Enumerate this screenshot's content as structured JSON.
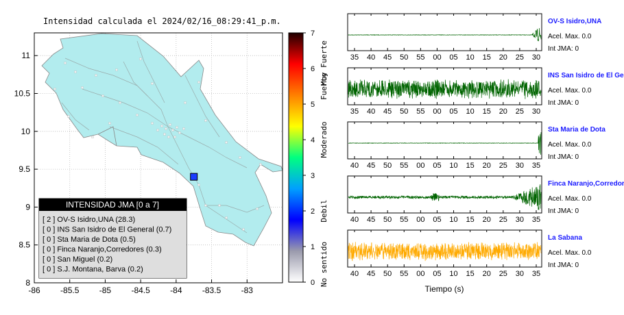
{
  "map": {
    "title": "Intensidad calculada el 2024/02/16_08:29:41_p.m.",
    "x_ticks": [
      "-86",
      "-85.5",
      "-85",
      "-84.5",
      "-84",
      "-83.5",
      "-83"
    ],
    "y_ticks": [
      "11",
      "10.5",
      "10",
      "9.5",
      "9",
      "8.5",
      "8"
    ],
    "xlim": [
      -86,
      -82.5
    ],
    "ylim": [
      8,
      11.3
    ],
    "land_color": "#b2ecee",
    "epicenter": {
      "lon": -83.75,
      "lat": 9.4,
      "color": "#1a3cff"
    },
    "legend": {
      "title": "INTENSIDAD JMA [0 a 7]",
      "items": [
        "[ 2 ]  OV-S Isidro,UNA (28.3)",
        "[ 0 ]  INS San Isidro de El General (0.7)",
        "[ 0 ]  Sta Maria de Dota (0.5)",
        "[ 0 ]  Finca Naranjo,Corredores (0.3)",
        "[ 0 ]  San Miguel (0.2)",
        "[ 0 ]  S.J. Montana, Barva (0.2)"
      ]
    }
  },
  "colorbar": {
    "ticks": [
      "0",
      "1",
      "2",
      "3",
      "4",
      "5",
      "6",
      "7"
    ],
    "labels": [
      "No sentido",
      "Debil",
      "Moderado",
      "Fuerte",
      "Muy Fuerte"
    ],
    "colors": [
      "#ffffff",
      "#9a9aac",
      "#0000ff",
      "#00a0ff",
      "#00ff80",
      "#ffff00",
      "#ff8000",
      "#ff0000",
      "#200000"
    ]
  },
  "traces": {
    "xlabel": "Tiempo (s)",
    "panels": [
      {
        "name": "OV-S Isidro,UNA",
        "acel": "Acel. Max. 0.0",
        "jma": "Int JMA: 0",
        "ticks": [
          "35",
          "40",
          "45",
          "50",
          "55",
          "00",
          "05",
          "10",
          "15",
          "20",
          "25",
          "30"
        ],
        "color": "#006400",
        "activity": "late"
      },
      {
        "name": "INS San Isidro de El Ge",
        "acel": "Acel. Max. 0.0",
        "jma": "Int JMA: 0",
        "ticks": [
          "35",
          "40",
          "45",
          "50",
          "55",
          "00",
          "05",
          "10",
          "15",
          "20",
          "25",
          "30"
        ],
        "color": "#006400",
        "activity": "continuous"
      },
      {
        "name": "Sta Maria de Dota",
        "acel": "Acel. Max. 0.0",
        "jma": "Int JMA: 0",
        "ticks": [
          "40",
          "45",
          "50",
          "55",
          "00",
          "05",
          "10",
          "15",
          "20",
          "25",
          "30",
          "35"
        ],
        "color": "#006400",
        "activity": "flat"
      },
      {
        "name": "Finca Naranjo,Corredores",
        "acel": "Acel. Max. 0.0",
        "jma": "Int JMA: 0",
        "ticks": [
          "40",
          "45",
          "50",
          "55",
          "00",
          "05",
          "10",
          "15",
          "20",
          "25",
          "30",
          "35"
        ],
        "color": "#006400",
        "activity": "growing"
      },
      {
        "name": "La Sabana",
        "acel": "Acel. Max. 0.0",
        "jma": "Int JMA: 0",
        "ticks": [
          "40",
          "45",
          "50",
          "55",
          "00",
          "05",
          "10",
          "15",
          "20",
          "25",
          "30",
          "35"
        ],
        "color": "#ffaa00",
        "activity": "continuous"
      }
    ]
  },
  "chart_data": [
    {
      "type": "scatter",
      "title": "Intensidad calculada el 2024/02/16_08:29:41_p.m.",
      "xlim": [
        -86,
        -82.5
      ],
      "ylim": [
        8,
        11.3
      ],
      "points": [
        {
          "x": -83.75,
          "y": 9.4
        }
      ],
      "legend_title": "INTENSIDAD JMA [0 a 7]",
      "legend": [
        {
          "station": "OV-S Isidro,UNA",
          "jma": 2,
          "value": 28.3
        },
        {
          "station": "INS San Isidro de El General",
          "jma": 0,
          "value": 0.7
        },
        {
          "station": "Sta Maria de Dota",
          "jma": 0,
          "value": 0.5
        },
        {
          "station": "Finca Naranjo,Corredores",
          "jma": 0,
          "value": 0.3
        },
        {
          "station": "San Miguel",
          "jma": 0,
          "value": 0.2
        },
        {
          "station": "S.J. Montana, Barva",
          "jma": 0,
          "value": 0.2
        }
      ]
    },
    {
      "type": "line",
      "xlabel": "Tiempo (s)",
      "series": [
        {
          "name": "OV-S Isidro,UNA"
        },
        {
          "name": "INS San Isidro de El Ge"
        },
        {
          "name": "Sta Maria de Dota"
        },
        {
          "name": "Finca Naranjo,Corredores"
        },
        {
          "name": "La Sabana"
        }
      ]
    }
  ]
}
